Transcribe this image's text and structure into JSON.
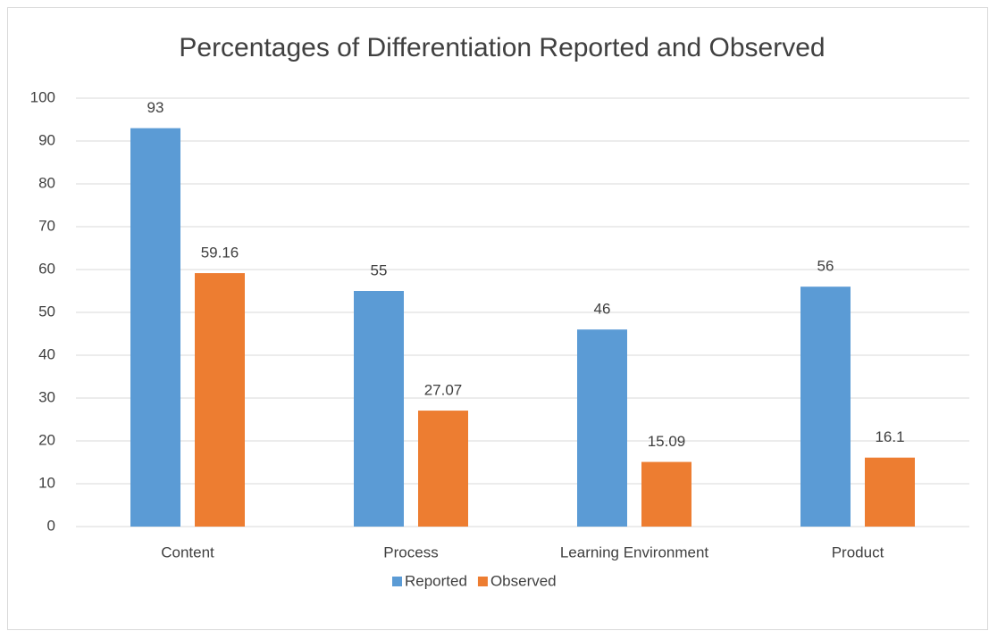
{
  "chart_data": {
    "type": "bar",
    "title": "Percentages of Differentiation Reported and Observed",
    "categories": [
      "Content",
      "Process",
      "Learning Environment",
      "Product"
    ],
    "series": [
      {
        "name": "Reported",
        "color": "#5b9bd5",
        "values": [
          93,
          55,
          46,
          56
        ]
      },
      {
        "name": "Observed",
        "color": "#ed7d31",
        "values": [
          59.16,
          27.07,
          15.09,
          16.1
        ]
      }
    ],
    "ylim": [
      0,
      100
    ],
    "yticks": [
      0,
      10,
      20,
      30,
      40,
      50,
      60,
      70,
      80,
      90,
      100
    ],
    "grid": true,
    "legend": "bottom",
    "data_labels": true
  }
}
